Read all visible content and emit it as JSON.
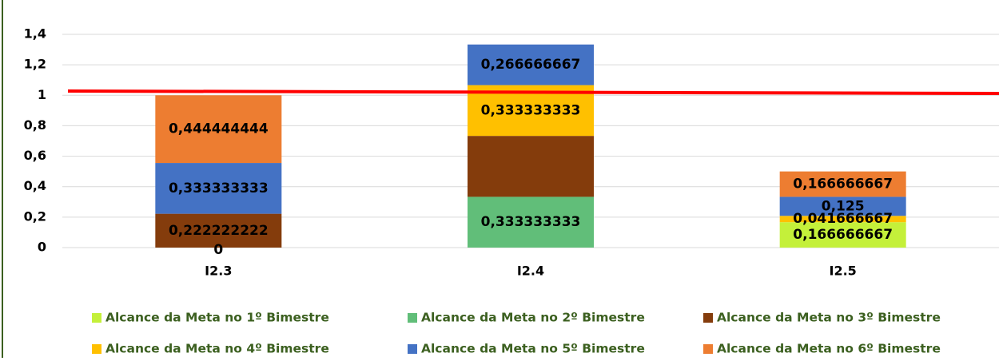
{
  "chart_data": {
    "type": "stacked_bar",
    "categories": [
      "I2.3",
      "I2.4",
      "I2.5"
    ],
    "series": [
      {
        "name": "Alcance da Meta no 1º Bimestre",
        "color": "#c4f03a",
        "values": [
          0,
          null,
          0.166666667
        ],
        "value_labels": [
          "0",
          null,
          "0,166666667"
        ]
      },
      {
        "name": "Alcance da Meta no 2º Bimestre",
        "color": "#61be79",
        "values": [
          null,
          0.333333333,
          null
        ],
        "value_labels": [
          null,
          "0,333333333",
          null
        ]
      },
      {
        "name": "Alcance da Meta no 3º Bimestre",
        "color": "#843c0c",
        "values": [
          0.222222222,
          0.4,
          null
        ],
        "value_labels": [
          "0,222222222",
          null,
          null
        ]
      },
      {
        "name": "Alcance da Meta no 4º Bimestre",
        "color": "#ffc000",
        "values": [
          null,
          0.333333333,
          0.041666667
        ],
        "value_labels": [
          null,
          "0,333333333",
          "0,041666667"
        ]
      },
      {
        "name": "Alcance da Meta no 5º Bimestre",
        "color": "#4472c4",
        "values": [
          0.333333333,
          0.266666667,
          0.125
        ],
        "value_labels": [
          "0,333333333",
          "0,266666667",
          "0,125"
        ]
      },
      {
        "name": "Alcance da Meta no 6º Bimestre",
        "color": "#ed7d31",
        "values": [
          0.444444444,
          null,
          0.166666667
        ],
        "value_labels": [
          "0,444444444",
          null,
          "0,166666667"
        ]
      }
    ],
    "ylim": [
      0,
      1.4
    ],
    "yticks": [
      0,
      {
        "value": 0.2,
        "label": "0,2"
      },
      {
        "value": 0.4,
        "label": "0,4"
      },
      {
        "value": 0.6,
        "label": "0,6"
      },
      {
        "value": 0.8,
        "label": "0,8"
      },
      1,
      {
        "value": 1.2,
        "label": "1,2"
      },
      {
        "value": 1.4,
        "label": "1,4"
      }
    ],
    "grid": true,
    "legend": "bottom"
  }
}
